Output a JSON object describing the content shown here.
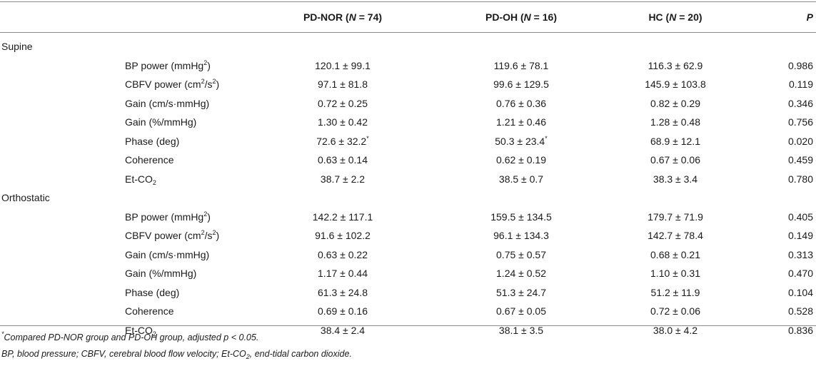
{
  "headers": {
    "g1_prefix": "PD-NOR (",
    "g1_n": "N",
    "g1_suffix": " = 74)",
    "g2_prefix": "PD-OH (",
    "g2_n": "N",
    "g2_suffix": " = 16)",
    "g3_prefix": "HC (",
    "g3_n": "N",
    "g3_suffix": " = 20)",
    "p": "P"
  },
  "sections": [
    {
      "label": "Supine",
      "rows": [
        {
          "m_main": "BP power (mmHg",
          "m_sup": "2",
          "m_sub": "",
          "m_tail": ")",
          "g1": "120.1 ± 99.1",
          "g1_mark": "",
          "g2": "119.6 ± 78.1",
          "g2_mark": "",
          "g3": "116.3 ± 62.9",
          "p": "0.986"
        },
        {
          "m_main": "CBFV power (cm",
          "m_sup": "2",
          "m_sub": "",
          "m_tail": "/s",
          "m_sup2": "2",
          "m_tail2": ")",
          "g1": "97.1 ± 81.8",
          "g1_mark": "",
          "g2": "99.6 ± 129.5",
          "g2_mark": "",
          "g3": "145.9 ± 103.8",
          "p": "0.119"
        },
        {
          "m_main": "Gain (cm/s·mmHg)",
          "g1": "0.72 ± 0.25",
          "g1_mark": "",
          "g2": "0.76 ± 0.36",
          "g2_mark": "",
          "g3": "0.82 ± 0.29",
          "p": "0.346"
        },
        {
          "m_main": "Gain (%/mmHg)",
          "g1": "1.30 ± 0.42",
          "g1_mark": "",
          "g2": "1.21 ± 0.46",
          "g2_mark": "",
          "g3": "1.28 ± 0.48",
          "p": "0.756"
        },
        {
          "m_main": "Phase (deg)",
          "g1": "72.6 ± 32.2",
          "g1_mark": "*",
          "g2": "50.3 ± 23.4",
          "g2_mark": "*",
          "g3": "68.9 ± 12.1",
          "p": "0.020"
        },
        {
          "m_main": "Coherence",
          "g1": "0.63 ± 0.14",
          "g1_mark": "",
          "g2": "0.62 ± 0.19",
          "g2_mark": "",
          "g3": "0.67 ± 0.06",
          "p": "0.459"
        },
        {
          "m_main": "Et-CO",
          "m_sub": "2",
          "g1": "38.7 ± 2.2",
          "g1_mark": "",
          "g2": "38.5 ± 0.7",
          "g2_mark": "",
          "g3": "38.3 ± 3.4",
          "p": "0.780"
        }
      ]
    },
    {
      "label": "Orthostatic",
      "rows": [
        {
          "m_main": "BP power (mmHg",
          "m_sup": "2",
          "m_sub": "",
          "m_tail": ")",
          "g1": "142.2 ± 117.1",
          "g1_mark": "",
          "g2": "159.5 ± 134.5",
          "g2_mark": "",
          "g3": "179.7 ± 71.9",
          "p": "0.405"
        },
        {
          "m_main": "CBFV power (cm",
          "m_sup": "2",
          "m_sub": "",
          "m_tail": "/s",
          "m_sup2": "2",
          "m_tail2": ")",
          "g1": "91.6 ± 102.2",
          "g1_mark": "",
          "g2": "96.1 ± 134.3",
          "g2_mark": "",
          "g3": "142.7 ± 78.4",
          "p": "0.149"
        },
        {
          "m_main": "Gain (cm/s·mmHg)",
          "g1": "0.63 ± 0.22",
          "g1_mark": "",
          "g2": "0.75 ± 0.57",
          "g2_mark": "",
          "g3": "0.68 ± 0.21",
          "p": "0.313"
        },
        {
          "m_main": "Gain (%/mmHg)",
          "g1": "1.17 ± 0.44",
          "g1_mark": "",
          "g2": "1.24 ± 0.52",
          "g2_mark": "",
          "g3": "1.10 ± 0.31",
          "p": "0.470"
        },
        {
          "m_main": "Phase (deg)",
          "g1": "61.3 ± 24.8",
          "g1_mark": "",
          "g2": "51.3 ± 24.7",
          "g2_mark": "",
          "g3": "51.2 ± 11.9",
          "p": "0.104"
        },
        {
          "m_main": "Coherence",
          "g1": "0.69 ± 0.16",
          "g1_mark": "",
          "g2": "0.67 ± 0.05",
          "g2_mark": "",
          "g3": "0.72 ± 0.06",
          "p": "0.528"
        },
        {
          "m_main": "Et-CO",
          "m_sub": "2",
          "g1": "38.4 ± 2.4",
          "g1_mark": "",
          "g2": "38.1 ± 3.5",
          "g2_mark": "",
          "g3": "38.0 ± 4.2",
          "p": "0.836"
        }
      ]
    }
  ],
  "footnotes": {
    "f1_mark": "*",
    "f1_text": "Compared PD-NOR group and PD-OH group, adjusted p < 0.05.",
    "f2_pre": "BP, blood pressure; CBFV, cerebral blood flow velocity; Et-CO",
    "f2_sub": "2",
    "f2_post": ", end-tidal carbon dioxide."
  }
}
